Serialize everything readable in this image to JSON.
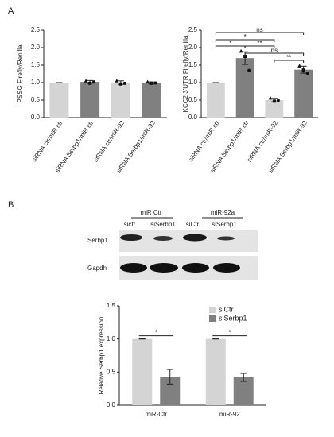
{
  "panels": [
    "A",
    "B"
  ],
  "chart_data": [
    {
      "type": "bar",
      "ylabel": "PSSG Firefly/Renilla",
      "categories": [
        "siRNA ctr/miR ctr",
        "siRNA Serbp1/miR ctr",
        "siRNA ctr/miR-92",
        "siRNA Serbp1/miR-92"
      ],
      "values": [
        1.0,
        1.02,
        1.0,
        0.99
      ],
      "errors": [
        0,
        0.04,
        0.05,
        0.03
      ],
      "points": [
        null,
        [
          1.05,
          0.98,
          1.02
        ],
        [
          1.05,
          0.96,
          0.98
        ],
        [
          1.02,
          0.98,
          0.99
        ]
      ],
      "colors": [
        "#d4d4d4",
        "#808080",
        "#d4d4d4",
        "#808080"
      ],
      "ylim": [
        0,
        2.5
      ],
      "yticks": [
        {
          "value": 0,
          "label": "0.0"
        },
        0.5,
        {
          "value": 1,
          "label": "1.0"
        },
        1.5,
        {
          "value": 2,
          "label": "2.0"
        },
        2.5
      ]
    },
    {
      "type": "bar",
      "ylabel": "KCC2 3'UTR Firefly/Renilla",
      "categories": [
        "siRNA ctr/miR ctr",
        "siRNA Serbp1/miR ctr",
        "siRNA ctr/miR-92",
        "siRNA Serbp1/miR-92"
      ],
      "values": [
        1.0,
        1.7,
        0.5,
        1.37
      ],
      "errors": [
        0,
        0.18,
        0.05,
        0.1
      ],
      "points": [
        null,
        [
          1.9,
          1.75,
          1.35
        ],
        [
          0.56,
          0.47,
          0.49
        ],
        [
          1.48,
          1.36,
          1.27
        ]
      ],
      "colors": [
        "#d4d4d4",
        "#808080",
        "#d4d4d4",
        "#808080"
      ],
      "ylim": [
        0,
        2.5
      ],
      "yticks": [
        {
          "value": 0,
          "label": "0.0"
        },
        0.5,
        {
          "value": 1,
          "label": "1.0"
        },
        1.5,
        {
          "value": 2,
          "label": "2.0"
        },
        2.5
      ],
      "comparisons": [
        {
          "bars": [
            0,
            3
          ],
          "label": "ns"
        },
        {
          "bars": [
            0,
            2
          ],
          "label": "*"
        },
        {
          "bars": [
            0,
            1
          ],
          "label": "*"
        },
        {
          "bars": [
            1,
            2
          ],
          "label": "**"
        },
        {
          "bars": [
            1,
            3
          ],
          "label": "ns"
        },
        {
          "bars": [
            2,
            3
          ],
          "label": "**"
        }
      ]
    },
    {
      "type": "grouped_bar",
      "ylabel": "Relative Serbp1 expression",
      "categories": [
        "miR-Ctr",
        "miR-92"
      ],
      "series": [
        {
          "name": "siCtr",
          "color": "#d4d4d4",
          "values": [
            1.0,
            1.0
          ],
          "errors": [
            0,
            0
          ]
        },
        {
          "name": "siSerbp1",
          "color": "#808080",
          "values": [
            0.43,
            0.42
          ],
          "errors": [
            0.11,
            0.06
          ]
        }
      ],
      "ylim": [
        0,
        1.5
      ],
      "yticks": [
        {
          "value": 0,
          "label": "0.0"
        },
        0.5,
        {
          "value": 1,
          "label": "1.0"
        },
        1.5
      ],
      "legend": "upper right",
      "comparisons": [
        {
          "category": 0,
          "label": "*"
        },
        {
          "category": 1,
          "label": "*"
        }
      ]
    }
  ],
  "blot": {
    "groups": [
      {
        "label": "miR Ctr",
        "lanes": [
          "sictr",
          "siSerbp1"
        ]
      },
      {
        "label": "miR-92a",
        "lanes": [
          "siCtr",
          "siSerbp1"
        ]
      }
    ],
    "rows": [
      "Serbp1",
      "Gapdh"
    ]
  }
}
